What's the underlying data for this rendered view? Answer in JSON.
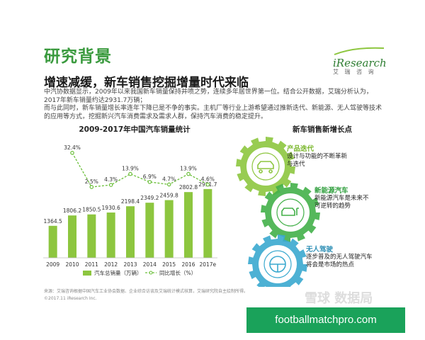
{
  "page": {
    "title": "研究背景",
    "subtitle": "增速减缓，新车销售挖掘增量时代来临",
    "paragraph": [
      "中汽协数据显示，2009年以来我国新车销量保持井喷之势，连续多年居世界第一位。结合公开数据，艾瑞分析认为，",
      "2017年新车销量约达2931.7万辆；",
      "而与此同时，新车销量增长率连年下降已是不争的事实。主机厂等行业上游希望通过推新迭代、新能源、无人驾驶等技术",
      "的应用等方式，挖掘新兴汽车消费需求及需求人群，保持汽车消费的稳定提升。"
    ],
    "logo_text": "iResearch",
    "logo_sub": "艾 瑞 咨 询",
    "source": "来源：艾瑞咨询根据中国汽车工业协会数据、企业综合访谈及艾瑞统计模式核算，艾瑞研究院自主绘制所得。",
    "copyright": "©2017.11 iResearch Inc.",
    "watermark": "雪球 数据局",
    "banner": "footballmatchpro.com"
  },
  "growth_points": {
    "title": "新车销售新增长点",
    "items": [
      {
        "head": "产品迭代",
        "desc": [
          "设计与功能的不断革新",
          "与迭代"
        ],
        "icon": "cars-icon",
        "color": "#8dc63f"
      },
      {
        "head": "新能源汽车",
        "desc": [
          "新能源汽车是未来不",
          "可逆转的趋势"
        ],
        "icon": "ev-charging-icon",
        "color": "#43b049"
      },
      {
        "head": "无人驾驶",
        "desc": [
          "逐步普及的无人驾驶汽车",
          "将会是市场的热点"
        ],
        "icon": "steering-wheel-icon",
        "color": "#3aa9cf"
      }
    ]
  },
  "chart_data": {
    "type": "bar",
    "title": "2009-2017年中国汽车销量统计",
    "categories": [
      "2009",
      "2010",
      "2011",
      "2012",
      "2013",
      "2014",
      "2015",
      "2016",
      "2017e"
    ],
    "series": [
      {
        "name": "汽车总销量（万辆）",
        "type": "bar",
        "color": "#8dc63f",
        "values": [
          1364.5,
          1806.2,
          1850.5,
          1930.6,
          2198.4,
          2349.2,
          2459.8,
          2802.8,
          2931.7
        ]
      },
      {
        "name": "同比增长（%）",
        "type": "line",
        "color": "#6bbf3a",
        "values": [
          null,
          32.4,
          2.5,
          4.3,
          13.9,
          6.9,
          4.7,
          13.9,
          4.6
        ],
        "labels": [
          "",
          "32.4%",
          "2.5%",
          "4.3%",
          "13.9%",
          "6.9%",
          "4.7%",
          "13.9%",
          "4.6%"
        ]
      }
    ],
    "ylim": [
      0,
      3200
    ],
    "y2lim": [
      0,
      36
    ],
    "legend": "bottom",
    "grid": false
  }
}
